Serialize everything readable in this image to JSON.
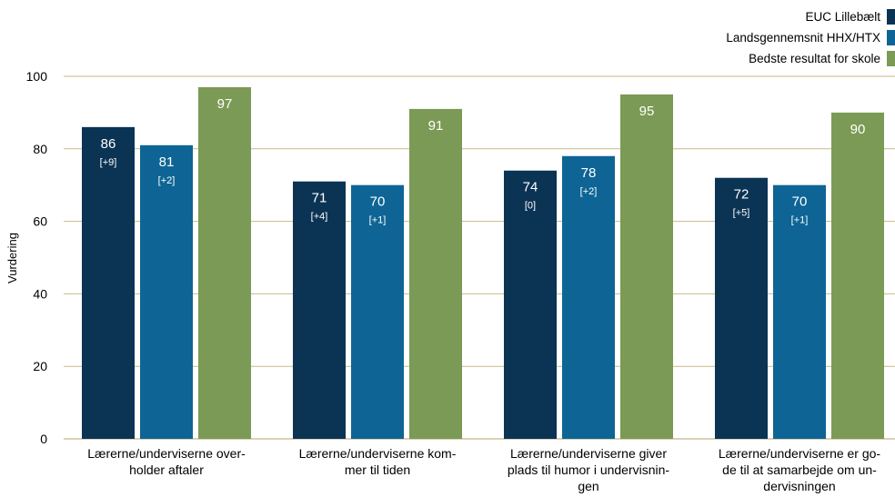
{
  "chart_data": {
    "type": "bar",
    "ylabel": "Vurdering",
    "ylim": [
      0,
      100
    ],
    "yticks": [
      0,
      20,
      40,
      60,
      80,
      100
    ],
    "grid": true,
    "legend_position": "top-right",
    "categories": [
      [
        "Lærerne/underviserne over-",
        "holder aftaler"
      ],
      [
        "Lærerne/underviserne kom-",
        "mer til tiden"
      ],
      [
        "Lærerne/underviserne giver",
        "plads til humor i undervisnin-",
        "gen"
      ],
      [
        "Lærerne/underviserne er go-",
        "de til at samarbejde om un-",
        "dervisningen"
      ]
    ],
    "series": [
      {
        "name": "EUC Lillebælt",
        "color": "#0b3354",
        "values": [
          86,
          71,
          74,
          72
        ],
        "deltas": [
          "[+9]",
          "[+4]",
          "[0]",
          "[+5]"
        ]
      },
      {
        "name": "Landsgennemsnit HHX/HTX",
        "color": "#0e6595",
        "values": [
          81,
          70,
          78,
          70
        ],
        "deltas": [
          "[+2]",
          "[+1]",
          "[+2]",
          "[+1]"
        ]
      },
      {
        "name": "Bedste resultat for skole",
        "color": "#7b9a55",
        "values": [
          97,
          91,
          95,
          90
        ],
        "deltas": [
          "",
          "",
          "",
          ""
        ]
      }
    ]
  }
}
